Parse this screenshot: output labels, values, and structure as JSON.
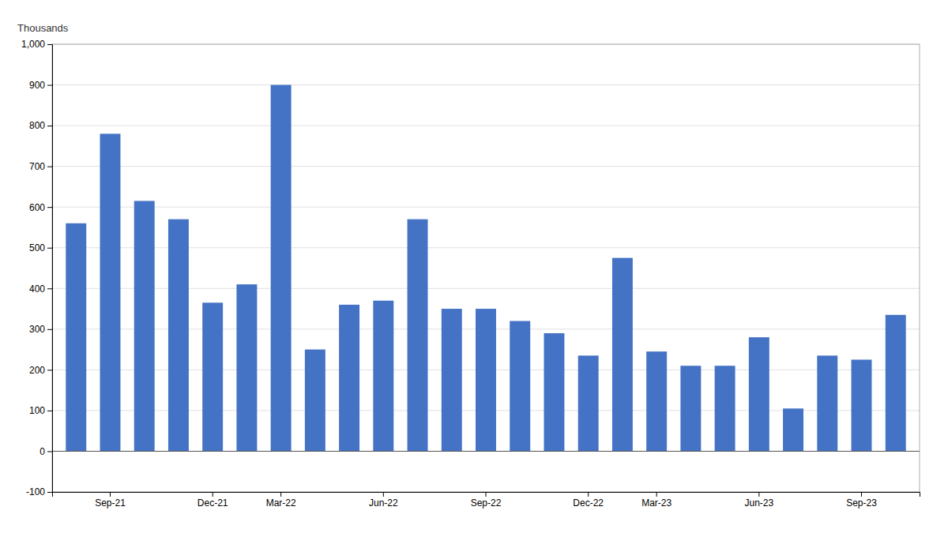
{
  "chart_data": {
    "type": "bar",
    "ylabel": "Thousands",
    "categories": [
      null,
      "Sep-21",
      null,
      null,
      "Dec-21",
      null,
      "Mar-22",
      null,
      null,
      "Jun-22",
      null,
      null,
      "Sep-22",
      null,
      null,
      "Dec-22",
      null,
      "Mar-23",
      null,
      null,
      "Jun-23",
      null,
      null,
      "Sep-23",
      null
    ],
    "values": [
      560,
      780,
      615,
      570,
      365,
      410,
      900,
      250,
      360,
      370,
      570,
      350,
      350,
      320,
      290,
      235,
      475,
      245,
      210,
      210,
      280,
      105,
      235,
      225,
      335
    ],
    "color": "#4472C4",
    "ylim": [
      -100,
      1000
    ],
    "yticks": [
      -100,
      0,
      100,
      200,
      300,
      400,
      500,
      600,
      700,
      800,
      900,
      {
        "value": 1000,
        "label": "1,000"
      }
    ],
    "grid": true
  }
}
